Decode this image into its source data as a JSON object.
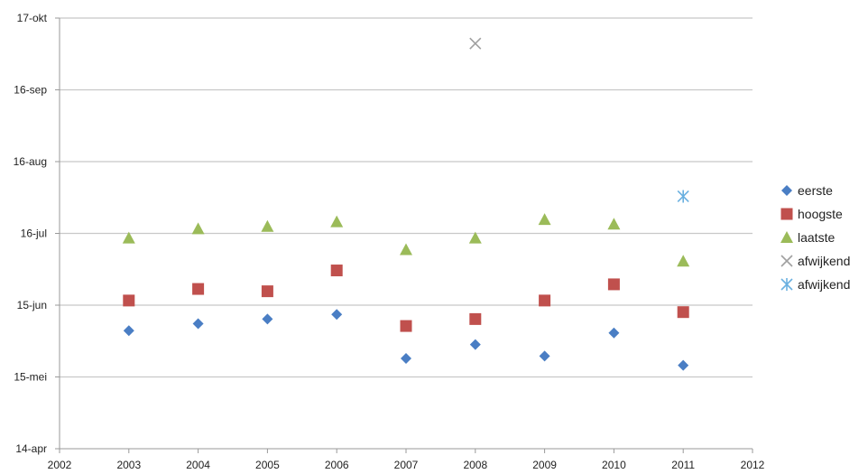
{
  "chart_data": {
    "type": "scatter",
    "x_ticks": [
      "2002",
      "2003",
      "2004",
      "2005",
      "2006",
      "2007",
      "2008",
      "2009",
      "2010",
      "2011",
      "2012"
    ],
    "xlim": [
      2002,
      2012
    ],
    "y_ticks": [
      {
        "label": "14-apr",
        "value": 0
      },
      {
        "label": "15-mei",
        "value": 31
      },
      {
        "label": "15-jun",
        "value": 62
      },
      {
        "label": "16-jul",
        "value": 93
      },
      {
        "label": "16-aug",
        "value": 124
      },
      {
        "label": "16-sep",
        "value": 155
      },
      {
        "label": "17-okt",
        "value": 186
      }
    ],
    "ylim": [
      0,
      186
    ],
    "grid": true,
    "legend_position": "right",
    "series": [
      {
        "name": "eerste",
        "marker": "diamond",
        "color": "#4a7ec4",
        "points": [
          [
            2003,
            51
          ],
          [
            2004,
            54
          ],
          [
            2005,
            56
          ],
          [
            2006,
            58
          ],
          [
            2007,
            39
          ],
          [
            2008,
            45
          ],
          [
            2009,
            40
          ],
          [
            2010,
            50
          ],
          [
            2011,
            36
          ]
        ]
      },
      {
        "name": "hoogste",
        "marker": "square",
        "color": "#c0504d",
        "points": [
          [
            2003,
            64
          ],
          [
            2004,
            69
          ],
          [
            2005,
            68
          ],
          [
            2006,
            77
          ],
          [
            2007,
            53
          ],
          [
            2008,
            56
          ],
          [
            2009,
            64
          ],
          [
            2010,
            71
          ],
          [
            2011,
            59
          ]
        ]
      },
      {
        "name": "laatste",
        "marker": "triangle",
        "color": "#9bbb59",
        "points": [
          [
            2003,
            91
          ],
          [
            2004,
            95
          ],
          [
            2005,
            96
          ],
          [
            2006,
            98
          ],
          [
            2007,
            86
          ],
          [
            2008,
            91
          ],
          [
            2009,
            99
          ],
          [
            2010,
            97
          ],
          [
            2011,
            81
          ]
        ]
      },
      {
        "name": "afwijkend",
        "marker": "x",
        "color": "#a0a0a0",
        "points": [
          [
            2008,
            175
          ]
        ]
      },
      {
        "name": "afwijkend",
        "marker": "star",
        "color": "#6ab0e0",
        "points": [
          [
            2011,
            109
          ]
        ]
      }
    ]
  }
}
